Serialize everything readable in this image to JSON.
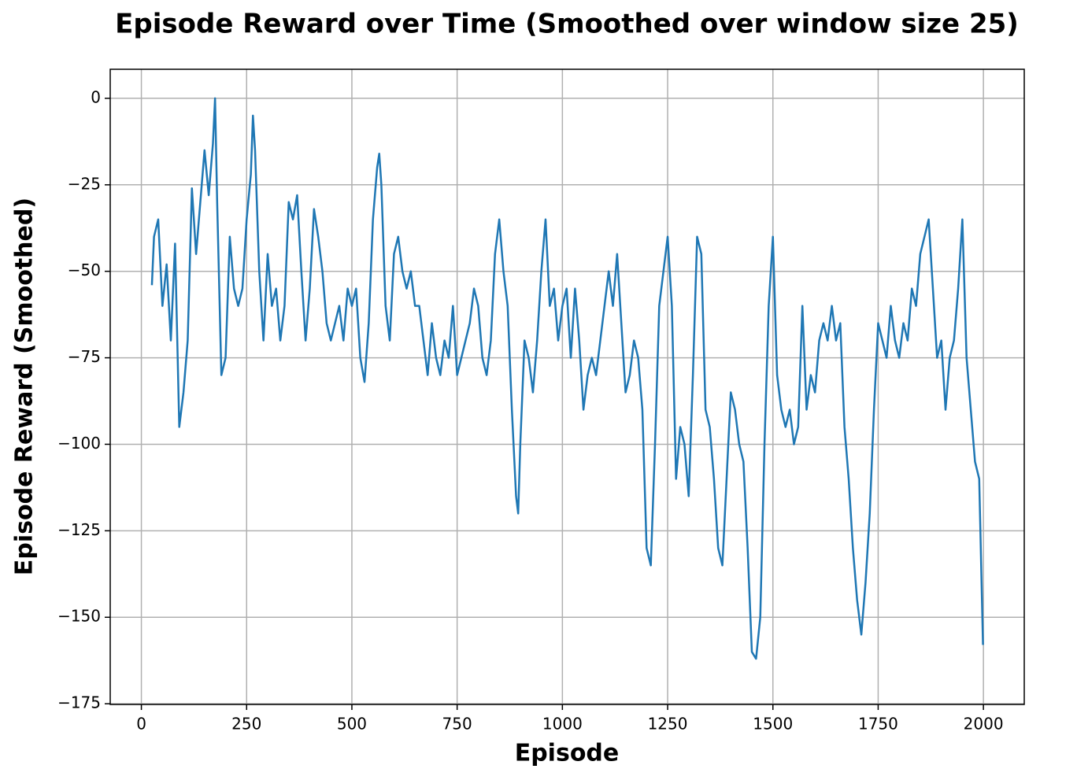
{
  "chart_data": {
    "type": "line",
    "title": "Episode Reward over Time (Smoothed over window size 25)",
    "xlabel": "Episode",
    "ylabel": "Episode Reward (Smoothed)",
    "x": [
      25,
      30,
      40,
      50,
      60,
      70,
      80,
      90,
      100,
      110,
      120,
      130,
      140,
      150,
      160,
      170,
      175,
      180,
      190,
      200,
      210,
      220,
      230,
      240,
      250,
      260,
      265,
      270,
      280,
      290,
      300,
      310,
      320,
      330,
      340,
      350,
      360,
      370,
      380,
      390,
      400,
      410,
      420,
      430,
      440,
      450,
      460,
      470,
      480,
      490,
      500,
      510,
      520,
      530,
      540,
      550,
      560,
      565,
      570,
      580,
      590,
      600,
      610,
      620,
      630,
      640,
      650,
      660,
      670,
      680,
      690,
      700,
      710,
      720,
      730,
      740,
      750,
      760,
      770,
      780,
      790,
      800,
      810,
      820,
      830,
      840,
      850,
      860,
      870,
      880,
      890,
      895,
      900,
      910,
      920,
      930,
      940,
      950,
      960,
      970,
      980,
      990,
      1000,
      1010,
      1020,
      1030,
      1040,
      1050,
      1060,
      1070,
      1080,
      1090,
      1100,
      1110,
      1120,
      1130,
      1140,
      1150,
      1160,
      1170,
      1180,
      1190,
      1200,
      1210,
      1220,
      1230,
      1240,
      1250,
      1260,
      1270,
      1280,
      1290,
      1300,
      1310,
      1320,
      1330,
      1340,
      1350,
      1360,
      1370,
      1380,
      1390,
      1400,
      1410,
      1420,
      1430,
      1440,
      1450,
      1460,
      1470,
      1480,
      1490,
      1500,
      1510,
      1520,
      1530,
      1540,
      1550,
      1560,
      1570,
      1580,
      1590,
      1600,
      1610,
      1620,
      1630,
      1640,
      1650,
      1660,
      1670,
      1680,
      1690,
      1700,
      1710,
      1720,
      1730,
      1740,
      1750,
      1760,
      1770,
      1780,
      1790,
      1800,
      1810,
      1820,
      1830,
      1840,
      1850,
      1860,
      1870,
      1880,
      1890,
      1900,
      1910,
      1920,
      1930,
      1940,
      1950,
      1960,
      1970,
      1980,
      1990,
      1999
    ],
    "series": [
      {
        "name": "Episode Reward (Smoothed)",
        "color": "#1f77b4",
        "values": [
          -54,
          -40,
          -35,
          -60,
          -48,
          -70,
          -42,
          -95,
          -85,
          -70,
          -26,
          -45,
          -30,
          -15,
          -28,
          -13,
          0,
          -30,
          -80,
          -75,
          -40,
          -55,
          -60,
          -55,
          -35,
          -22,
          -5,
          -15,
          -50,
          -70,
          -45,
          -60,
          -55,
          -70,
          -60,
          -30,
          -35,
          -28,
          -50,
          -70,
          -55,
          -32,
          -40,
          -50,
          -65,
          -70,
          -65,
          -60,
          -70,
          -55,
          -60,
          -55,
          -75,
          -82,
          -65,
          -35,
          -20,
          -16,
          -25,
          -60,
          -70,
          -45,
          -40,
          -50,
          -55,
          -50,
          -60,
          -60,
          -70,
          -80,
          -65,
          -75,
          -80,
          -70,
          -75,
          -60,
          -80,
          -75,
          -70,
          -65,
          -55,
          -60,
          -75,
          -80,
          -70,
          -45,
          -35,
          -50,
          -60,
          -90,
          -115,
          -120,
          -100,
          -70,
          -75,
          -85,
          -70,
          -50,
          -35,
          -60,
          -55,
          -70,
          -60,
          -55,
          -75,
          -55,
          -70,
          -90,
          -80,
          -75,
          -80,
          -70,
          -60,
          -50,
          -60,
          -45,
          -65,
          -85,
          -80,
          -70,
          -75,
          -90,
          -130,
          -135,
          -100,
          -60,
          -50,
          -40,
          -60,
          -110,
          -95,
          -100,
          -115,
          -80,
          -40,
          -45,
          -90,
          -95,
          -110,
          -130,
          -135,
          -110,
          -85,
          -90,
          -100,
          -105,
          -130,
          -160,
          -162,
          -150,
          -100,
          -60,
          -40,
          -80,
          -90,
          -95,
          -90,
          -100,
          -95,
          -60,
          -90,
          -80,
          -85,
          -70,
          -65,
          -70,
          -60,
          -70,
          -65,
          -95,
          -110,
          -130,
          -145,
          -155,
          -140,
          -120,
          -90,
          -65,
          -70,
          -75,
          -60,
          -70,
          -75,
          -65,
          -70,
          -55,
          -60,
          -45,
          -40,
          -35,
          -55,
          -75,
          -70,
          -90,
          -75,
          -70,
          -55,
          -35,
          -75,
          -90,
          -105,
          -110,
          -158
        ]
      }
    ],
    "xlim": [
      -74,
      2097
    ],
    "ylim": [
      -175.2,
      8.4
    ],
    "xticks": [
      0,
      250,
      500,
      750,
      1000,
      1250,
      1500,
      1750,
      2000
    ],
    "yticks": [
      0,
      {
        "value": -25,
        "label": "−25"
      },
      {
        "value": -50,
        "label": "−50"
      },
      {
        "value": -75,
        "label": "−75"
      },
      {
        "value": -100,
        "label": "−100"
      },
      {
        "value": -125,
        "label": "−125"
      },
      {
        "value": -150,
        "label": "−150"
      },
      {
        "value": -175,
        "label": "−175"
      }
    ],
    "grid": true
  }
}
